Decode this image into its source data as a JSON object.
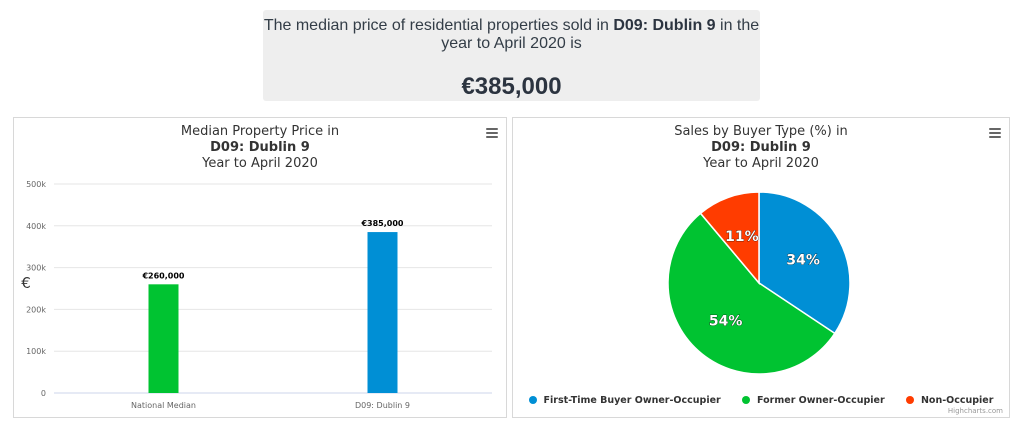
{
  "banner": {
    "text_before": "The median price of residential properties sold in ",
    "area": "D09: Dublin 9",
    "text_after": " in the",
    "line2": "year to April 2020 is",
    "price": "€385,000"
  },
  "credits": "Highcharts.com",
  "chart_data": [
    {
      "type": "bar",
      "title_line1": "Median Property Price in",
      "title_line2": "D09: Dublin 9",
      "title_line3": "Year to April 2020",
      "ylabel": "€",
      "categories": [
        "National Median",
        "D09: Dublin 9"
      ],
      "values": [
        260000,
        385000
      ],
      "data_labels": [
        "€260,000",
        "€385,000"
      ],
      "colors": [
        "#00c331",
        "#008fd5"
      ],
      "ylim": [
        0,
        500000
      ],
      "yticks": [
        0,
        100000,
        200000,
        300000,
        400000,
        500000
      ],
      "ytick_labels": [
        "0",
        "100k",
        "200k",
        "300k",
        "400k",
        "500k"
      ],
      "grid": true
    },
    {
      "type": "pie",
      "title_line1": "Sales by Buyer Type (%) in",
      "title_line2": "D09: Dublin 9",
      "title_line3": "Year to April 2020",
      "slices": [
        {
          "name": "First-Time Buyer Owner-Occupier",
          "value": 34,
          "label": "34%",
          "color": "#008fd5"
        },
        {
          "name": "Former Owner-Occupier",
          "value": 54,
          "label": "54%",
          "color": "#00c331"
        },
        {
          "name": "Non-Occupier",
          "value": 11,
          "label": "11%",
          "color": "#ff3c00"
        }
      ],
      "legend_position": "bottom"
    }
  ]
}
